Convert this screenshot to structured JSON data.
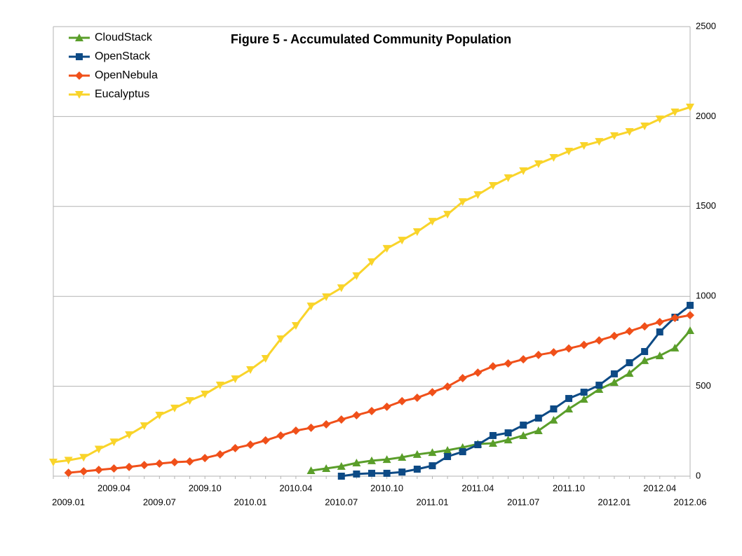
{
  "chart_data": {
    "type": "line",
    "title": "Figure 5 - Accumulated Community Population",
    "categories": [
      null,
      "2009.01",
      null,
      null,
      "2009.04",
      null,
      null,
      "2009.07",
      null,
      null,
      "2009.10",
      null,
      null,
      "2010.01",
      null,
      null,
      "2010.04",
      null,
      null,
      "2010.07",
      null,
      null,
      "2010.10",
      null,
      null,
      "2011.01",
      null,
      null,
      "2011.04",
      null,
      null,
      "2011.07",
      null,
      null,
      "2011.10",
      null,
      null,
      "2012.01",
      null,
      null,
      "2012.04",
      null,
      "2012.06"
    ],
    "series": [
      {
        "name": "CloudStack",
        "color": "#5a9e2a",
        "marker": "triangle-up",
        "values": [
          null,
          null,
          null,
          null,
          null,
          null,
          null,
          null,
          null,
          null,
          null,
          null,
          null,
          null,
          null,
          null,
          null,
          31,
          43,
          55,
          74,
          86,
          93,
          105,
          121,
          132,
          144,
          160,
          179,
          183,
          202,
          226,
          253,
          312,
          374,
          428,
          483,
          522,
          572,
          643,
          670,
          713,
          810
        ]
      },
      {
        "name": "OpenStack",
        "color": "#0d4a85",
        "marker": "square",
        "values": [
          null,
          null,
          null,
          null,
          null,
          null,
          null,
          null,
          null,
          null,
          null,
          null,
          null,
          null,
          null,
          null,
          null,
          null,
          null,
          0,
          12,
          16,
          16,
          23,
          39,
          58,
          109,
          136,
          175,
          226,
          241,
          284,
          323,
          374,
          432,
          467,
          506,
          569,
          631,
          693,
          802,
          884,
          950
        ]
      },
      {
        "name": "OpenNebula",
        "color": "#f0501a",
        "marker": "diamond",
        "values": [
          null,
          19,
          27,
          35,
          43,
          51,
          62,
          70,
          78,
          82,
          101,
          121,
          156,
          175,
          199,
          226,
          253,
          269,
          288,
          315,
          339,
          362,
          386,
          417,
          436,
          467,
          498,
          545,
          576,
          611,
          627,
          650,
          674,
          689,
          710,
          730,
          755,
          780,
          806,
          833,
          857,
          880,
          895
        ]
      },
      {
        "name": "Eucalyptus",
        "color": "#f9d42a",
        "marker": "triangle-down",
        "values": [
          78,
          88,
          104,
          150,
          190,
          230,
          280,
          339,
          378,
          420,
          456,
          506,
          541,
          592,
          654,
          763,
          837,
          946,
          997,
          1047,
          1114,
          1192,
          1266,
          1312,
          1359,
          1417,
          1456,
          1526,
          1565,
          1616,
          1659,
          1698,
          1737,
          1772,
          1807,
          1838,
          1861,
          1893,
          1916,
          1947,
          1986,
          2025,
          2052
        ]
      }
    ],
    "ylim": [
      0,
      2500
    ],
    "yticks": [
      0,
      500,
      1000,
      1500,
      2000,
      2500
    ],
    "y_axis_side": "right",
    "grid": true,
    "legend": "upper left"
  }
}
